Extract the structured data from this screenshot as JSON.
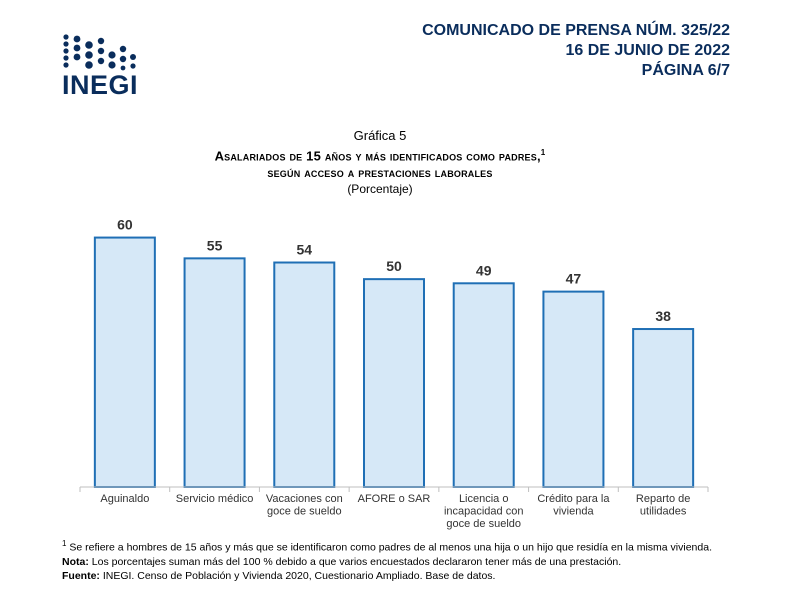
{
  "logo": {
    "text": "INEGI"
  },
  "header": {
    "line1": "COMUNICADO DE PRENSA NÚM. 325/22",
    "line2": "16 DE JUNIO DE 2022",
    "line3": "PÁGINA 6/7"
  },
  "chart_data": {
    "type": "bar",
    "caption": "Gráfica 5",
    "title_line1": "Asalariados de 15 años y más identificados como padres,",
    "title_footnote_marker": "1",
    "title_line2": "según acceso a prestaciones laborales",
    "units": "(Porcentaje)",
    "categories": [
      [
        "Aguinaldo"
      ],
      [
        "Servicio médico"
      ],
      [
        "Vacaciones con",
        "goce de sueldo"
      ],
      [
        "AFORE o SAR"
      ],
      [
        "Licencia o",
        "incapacidad con",
        "goce de sueldo"
      ],
      [
        "Crédito para la",
        "vivienda"
      ],
      [
        "Reparto de",
        "utilidades"
      ]
    ],
    "values": [
      60,
      55,
      54,
      50,
      49,
      47,
      38
    ],
    "ylim": [
      0,
      70
    ],
    "grid": false,
    "colors": {
      "fill": "#d6e8f7",
      "stroke": "#1f6fb5"
    }
  },
  "footnotes": {
    "note1_marker": "1",
    "note1": " Se refiere a hombres de 15 años y más que se identificaron como padres de al menos una hija o un hijo que residía en la misma vivienda.",
    "nota_label": "Nota:",
    "nota_text": " Los porcentajes suman más del 100 % debido a que varios encuestados declararon tener más de una prestación.",
    "fuente_label": "Fuente:",
    "fuente_text": " INEGI. Censo de Población y Vivienda 2020, Cuestionario Ampliado. Base de datos."
  }
}
